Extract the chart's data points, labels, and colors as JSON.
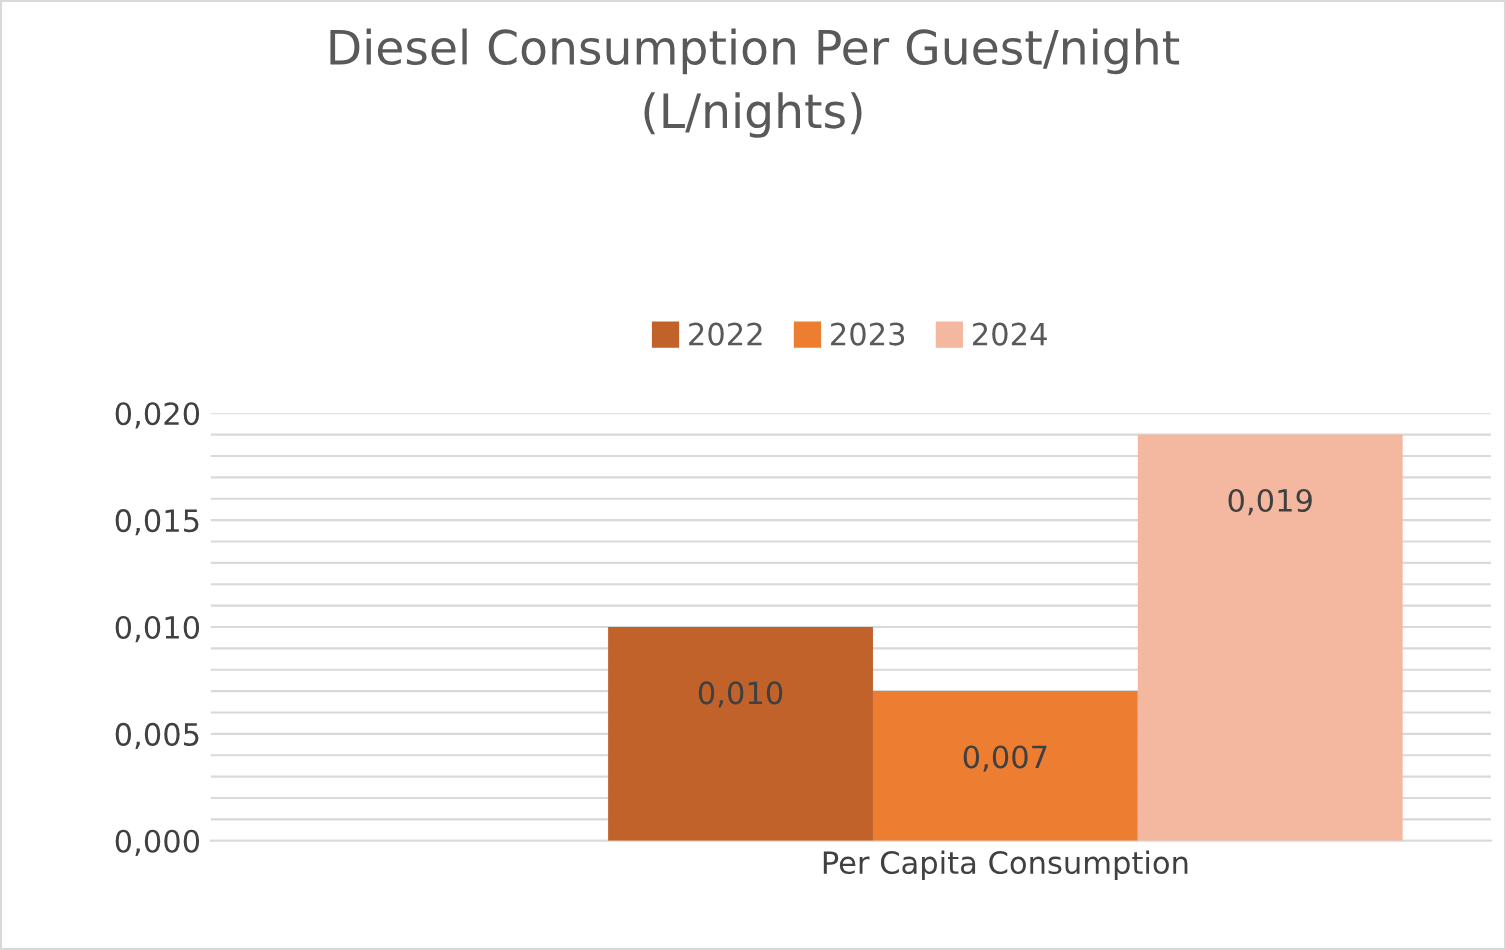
{
  "chart_data": {
    "type": "bar",
    "title": "Diesel Consumption Per Guest/night\n(L/nights)",
    "categories": [
      "Per Capita Consumption"
    ],
    "series": [
      {
        "name": "2022",
        "color": "#c0622a",
        "values": [
          0.01
        ],
        "value_labels": [
          "0,010"
        ]
      },
      {
        "name": "2023",
        "color": "#ed7d31",
        "values": [
          0.007
        ],
        "value_labels": [
          "0,007"
        ]
      },
      {
        "name": "2024",
        "color": "#f4b8a0",
        "values": [
          0.019
        ],
        "value_labels": [
          "0,019"
        ]
      }
    ],
    "ylim": [
      0,
      0.02
    ],
    "yticks": [
      {
        "value": 0,
        "label": "0,000"
      },
      {
        "value": 0.001,
        "label": null
      },
      {
        "value": 0.002,
        "label": null
      },
      {
        "value": 0.003,
        "label": null
      },
      {
        "value": 0.004,
        "label": null
      },
      {
        "value": 0.005,
        "label": "0,005"
      },
      {
        "value": 0.006,
        "label": null
      },
      {
        "value": 0.007,
        "label": null
      },
      {
        "value": 0.008,
        "label": null
      },
      {
        "value": 0.009,
        "label": null
      },
      {
        "value": 0.01,
        "label": "0,010"
      },
      {
        "value": 0.011,
        "label": null
      },
      {
        "value": 0.012,
        "label": null
      },
      {
        "value": 0.013,
        "label": null
      },
      {
        "value": 0.014,
        "label": null
      },
      {
        "value": 0.015,
        "label": "0,015"
      },
      {
        "value": 0.016,
        "label": null
      },
      {
        "value": 0.017,
        "label": null
      },
      {
        "value": 0.018,
        "label": null
      },
      {
        "value": 0.019,
        "label": null
      },
      {
        "value": 0.02,
        "label": "0,020"
      }
    ],
    "grid": "y",
    "legend": "top"
  }
}
